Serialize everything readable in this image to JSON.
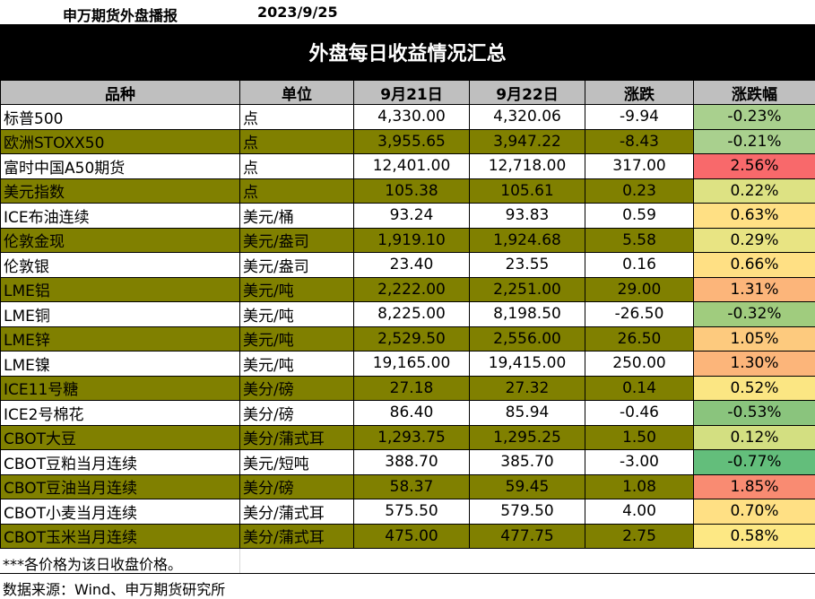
{
  "header": {
    "source": "申万期货外盘播报",
    "date": "2023/9/25"
  },
  "title": "外盘每日收益情况汇总",
  "columns": [
    "品种",
    "单位",
    "9月21日",
    "9月22日",
    "涨跌",
    "涨跌幅"
  ],
  "rows": [
    {
      "name": "标普500",
      "unit": "点",
      "prev": "4,330.00",
      "curr": "4,320.06",
      "change": "-9.94",
      "pct": "-0.23%",
      "pct_color": "#a9d08e"
    },
    {
      "name": "欧洲STOXX50",
      "unit": "点",
      "prev": "3,955.65",
      "curr": "3,947.22",
      "change": "-8.43",
      "pct": "-0.21%",
      "pct_color": "#a9d08e"
    },
    {
      "name": "富时中国A50期货",
      "unit": "点",
      "prev": "12,401.00",
      "curr": "12,718.00",
      "change": "317.00",
      "pct": "2.56%",
      "pct_color": "#f8696b"
    },
    {
      "name": "美元指数",
      "unit": "点",
      "prev": "105.38",
      "curr": "105.61",
      "change": "0.23",
      "pct": "0.22%",
      "pct_color": "#dde283"
    },
    {
      "name": "ICE布油连续",
      "unit": "美元/桶",
      "prev": "93.24",
      "curr": "93.83",
      "change": "0.59",
      "pct": "0.63%",
      "pct_color": "#ffe084"
    },
    {
      "name": "伦敦金现",
      "unit": "美元/盎司",
      "prev": "1,919.10",
      "curr": "1,924.68",
      "change": "5.58",
      "pct": "0.29%",
      "pct_color": "#e8e483"
    },
    {
      "name": "伦敦银",
      "unit": "美元/盎司",
      "prev": "23.40",
      "curr": "23.55",
      "change": "0.16",
      "pct": "0.66%",
      "pct_color": "#ffe084"
    },
    {
      "name": "LME铝",
      "unit": "美元/吨",
      "prev": "2,222.00",
      "curr": "2,251.00",
      "change": "29.00",
      "pct": "1.31%",
      "pct_color": "#fcb57a"
    },
    {
      "name": "LME铜",
      "unit": "美元/吨",
      "prev": "8,225.00",
      "curr": "8,198.50",
      "change": "-26.50",
      "pct": "-0.32%",
      "pct_color": "#a0cc7e"
    },
    {
      "name": "LME锌",
      "unit": "美元/吨",
      "prev": "2,529.50",
      "curr": "2,556.00",
      "change": "26.50",
      "pct": "1.05%",
      "pct_color": "#fdca7e"
    },
    {
      "name": "LME镍",
      "unit": "美元/吨",
      "prev": "19,165.00",
      "curr": "19,415.00",
      "change": "250.00",
      "pct": "1.30%",
      "pct_color": "#fcb57a"
    },
    {
      "name": "ICE11号糖",
      "unit": "美分/磅",
      "prev": "27.18",
      "curr": "27.32",
      "change": "0.14",
      "pct": "0.52%",
      "pct_color": "#fbe683"
    },
    {
      "name": "ICE2号棉花",
      "unit": "美分/磅",
      "prev": "86.40",
      "curr": "85.94",
      "change": "-0.46",
      "pct": "-0.53%",
      "pct_color": "#8ac47d"
    },
    {
      "name": "CBOT大豆",
      "unit": "美分/蒲式耳",
      "prev": "1,293.75",
      "curr": "1,295.25",
      "change": "1.50",
      "pct": "0.12%",
      "pct_color": "#d3df81"
    },
    {
      "name": "CBOT豆粕当月连续",
      "unit": "美元/短吨",
      "prev": "388.70",
      "curr": "385.70",
      "change": "-3.00",
      "pct": "-0.77%",
      "pct_color": "#63be7b"
    },
    {
      "name": "CBOT豆油当月连续",
      "unit": "美分/磅",
      "prev": "58.37",
      "curr": "59.45",
      "change": "1.08",
      "pct": "1.85%",
      "pct_color": "#f98b72"
    },
    {
      "name": "CBOT小麦当月连续",
      "unit": "美分/蒲式耳",
      "prev": "575.50",
      "curr": "579.50",
      "change": "4.00",
      "pct": "0.70%",
      "pct_color": "#ffe084"
    },
    {
      "name": "CBOT玉米当月连续",
      "unit": "美分/蒲式耳",
      "prev": "475.00",
      "curr": "477.75",
      "change": "2.75",
      "pct": "0.58%",
      "pct_color": "#fde884"
    }
  ],
  "footnote": "***各价格为该日收盘价格。",
  "source": "数据来源：Wind、申万期货研究所"
}
